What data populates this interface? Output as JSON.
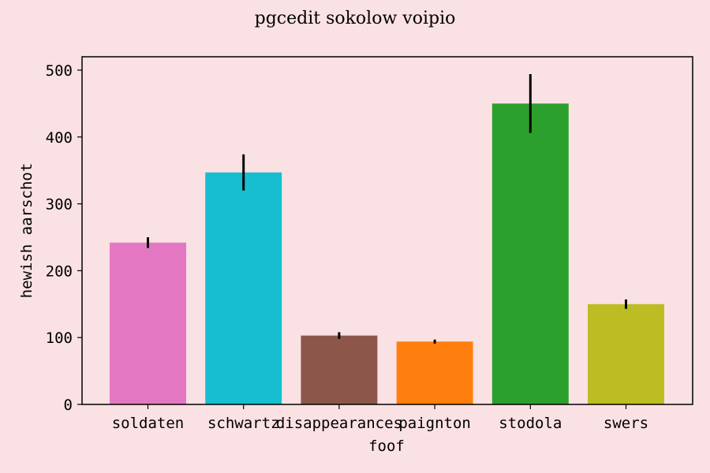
{
  "chart_data": {
    "type": "bar",
    "title": "pgcedit sokolow voipio",
    "xlabel": "foof",
    "ylabel": "hewish aarschot",
    "categories": [
      "soldaten",
      "schwartz",
      "disappearances",
      "paignton",
      "stodola",
      "swers"
    ],
    "values": [
      242,
      347,
      103,
      94,
      450,
      150
    ],
    "errors": [
      8,
      27,
      5,
      3,
      44,
      7
    ],
    "colors": [
      "#e377c2",
      "#17becf",
      "#8c564b",
      "#ff7f0e",
      "#2ca02c",
      "#bcbd22"
    ],
    "ylim": [
      0,
      520
    ],
    "yticks": [
      0,
      100,
      200,
      300,
      400,
      500
    ],
    "grid": false,
    "legend": "none"
  },
  "style": {
    "background": "#fae1e3",
    "plot_background": "#fae1e3",
    "error_bar_color": "#000000"
  }
}
